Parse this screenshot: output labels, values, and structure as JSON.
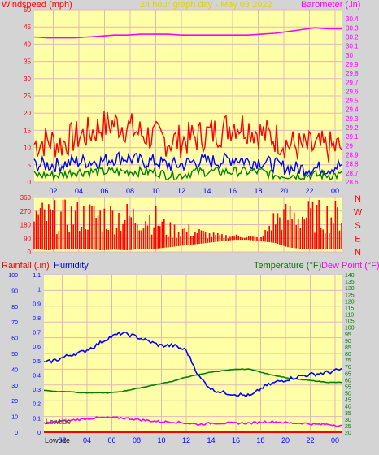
{
  "title": "24 hour graph day - May 03 2022",
  "colors": {
    "plot_bg": "#ffffa8",
    "frame_bg": "#d4d4d4",
    "grid": "#e0b8b8",
    "wind_gust": "#ff0000",
    "wind_avg": "#0000ff",
    "wind_low": "#008000",
    "barometer": "#ff00ff",
    "direction": "#ff0000",
    "humidity": "#0000ff",
    "temperature": "#008000",
    "dewpoint": "#ff00ff",
    "rain": "#ff0000"
  },
  "x_ticks": [
    "02",
    "04",
    "06",
    "08",
    "10",
    "12",
    "14",
    "16",
    "18",
    "20",
    "22",
    "00"
  ],
  "chart_data": [
    {
      "type": "line",
      "title": "24 hour graph day - May 03 2022",
      "ylabel": "Windspeed (mph)",
      "y2label": "Barometer (.in)",
      "ylim": [
        0,
        50
      ],
      "y2lim": [
        28.6,
        30.5
      ],
      "yticks": [
        "0",
        "5",
        "10",
        "15",
        "20",
        "25",
        "30",
        "35",
        "40",
        "45",
        "50"
      ],
      "y2ticks": [
        "28.6",
        "28.7",
        "28.8",
        "28.9",
        "29",
        "29.1",
        "29.2",
        "29.3",
        "29.4",
        "29.5",
        "29.6",
        "29.7",
        "29.8",
        "29.9",
        "30",
        "30.1",
        "30.2",
        "30.3",
        "30.4"
      ],
      "x": [
        "01",
        "02",
        "03",
        "04",
        "05",
        "06",
        "07",
        "08",
        "09",
        "10",
        "11",
        "12",
        "13",
        "14",
        "15",
        "16",
        "17",
        "18",
        "19",
        "20",
        "21",
        "22",
        "23",
        "00"
      ],
      "series": [
        {
          "name": "Windspeed (mph)",
          "role": "gust",
          "values": [
            11,
            12,
            11,
            13,
            14,
            16,
            17,
            16,
            14,
            13,
            12,
            12,
            13,
            14,
            15,
            17,
            16,
            14,
            13,
            11,
            10,
            10,
            10,
            10
          ]
        },
        {
          "name": "Windspeed (mph)",
          "role": "average",
          "values": [
            5,
            5,
            5,
            6,
            6,
            6,
            7,
            7,
            6,
            6,
            5,
            5,
            6,
            6,
            6,
            7,
            6,
            6,
            5,
            4,
            4,
            4,
            4,
            5
          ]
        },
        {
          "name": "Windspeed (mph)",
          "role": "low",
          "values": [
            2,
            2,
            2,
            3,
            3,
            3,
            3,
            3,
            3,
            3,
            2,
            2,
            3,
            3,
            3,
            3,
            3,
            3,
            2,
            2,
            2,
            2,
            2,
            2
          ]
        },
        {
          "name": "Barometer (.in)",
          "values": [
            30.2,
            30.19,
            30.19,
            30.19,
            30.2,
            30.21,
            30.22,
            30.22,
            30.23,
            30.23,
            30.23,
            30.22,
            30.22,
            30.22,
            30.22,
            30.22,
            30.22,
            30.23,
            30.24,
            30.26,
            30.28,
            30.3,
            30.29,
            30.29
          ]
        }
      ],
      "gridlines": true
    },
    {
      "type": "scatter",
      "title": "",
      "ylabel": "",
      "ylim": [
        0,
        360
      ],
      "yticks": [
        "0",
        "90",
        "180",
        "270",
        "360"
      ],
      "compass_labels": [
        "N",
        "W",
        "S",
        "E",
        "N"
      ],
      "x": [
        "01",
        "02",
        "03",
        "04",
        "05",
        "06",
        "07",
        "08",
        "09",
        "10",
        "11",
        "12",
        "13",
        "14",
        "15",
        "16",
        "17",
        "18",
        "19",
        "20",
        "21",
        "22",
        "23",
        "00"
      ],
      "series": [
        {
          "name": "",
          "role": "direction_min",
          "values": [
            20,
            10,
            20,
            15,
            20,
            10,
            15,
            10,
            20,
            20,
            30,
            40,
            50,
            60,
            70,
            80,
            80,
            70,
            60,
            30,
            20,
            20,
            20,
            20
          ]
        },
        {
          "name": "",
          "role": "direction_max",
          "values": [
            350,
            345,
            350,
            350,
            350,
            350,
            350,
            340,
            340,
            330,
            200,
            200,
            180,
            140,
            120,
            120,
            110,
            100,
            300,
            340,
            350,
            350,
            350,
            350
          ]
        }
      ],
      "gridlines": true
    },
    {
      "type": "line",
      "title": "",
      "ylabel": "Rainfall (.in)",
      "y_second_label": "Humidity",
      "y2label": "Temperature (°F)",
      "y3label": "Dew Point (°F)",
      "ylim_humidity": [
        0,
        100
      ],
      "ylim_rain": [
        0,
        1.1
      ],
      "y2lim": [
        20,
        140
      ],
      "humidity_ticks": [
        "0",
        "10",
        "20",
        "30",
        "40",
        "50",
        "60",
        "70",
        "80",
        "90",
        "100"
      ],
      "rain_ticks": [
        "0",
        "0.1",
        "0.2",
        "0.3",
        "0.4",
        "0.5",
        "0.6",
        "0.7",
        "0.8",
        "0.9",
        "1",
        "1.1"
      ],
      "temp_ticks": [
        "20",
        "25",
        "30",
        "35",
        "40",
        "45",
        "50",
        "55",
        "60",
        "65",
        "70",
        "75",
        "80",
        "85",
        "90",
        "95",
        "100",
        "105",
        "110",
        "115",
        "120",
        "125",
        "130",
        "135",
        "140"
      ],
      "annotations": [
        "Lowtide",
        "Lowtide"
      ],
      "x": [
        "01",
        "02",
        "03",
        "04",
        "05",
        "06",
        "07",
        "08",
        "09",
        "10",
        "11",
        "12",
        "13",
        "14",
        "15",
        "16",
        "17",
        "18",
        "19",
        "20",
        "21",
        "22",
        "23",
        "00"
      ],
      "series": [
        {
          "name": "Humidity",
          "values": [
            44,
            46,
            49,
            51,
            55,
            60,
            63,
            61,
            58,
            55,
            55,
            52,
            35,
            27,
            25,
            24,
            23,
            29,
            32,
            34,
            36,
            37,
            38,
            40
          ]
        },
        {
          "name": "Temperature (°F)",
          "values": [
            52,
            51,
            51,
            50,
            50,
            50,
            51,
            53,
            55,
            57,
            59,
            62,
            64,
            66,
            67,
            68,
            68,
            65,
            63,
            61,
            60,
            59,
            58,
            58
          ]
        },
        {
          "name": "Dew Point (°F)",
          "values": [
            27,
            28,
            29,
            30,
            31,
            31,
            31,
            30,
            29,
            28,
            28,
            27,
            26,
            27,
            27,
            27,
            27,
            28,
            28,
            27,
            27,
            26,
            26,
            25
          ]
        },
        {
          "name": "Rainfall (.in)",
          "values": [
            0,
            0,
            0,
            0,
            0,
            0,
            0,
            0,
            0,
            0,
            0,
            0,
            0,
            0,
            0,
            0,
            0,
            0,
            0,
            0,
            0,
            0,
            0,
            0
          ]
        }
      ],
      "gridlines": true
    }
  ]
}
